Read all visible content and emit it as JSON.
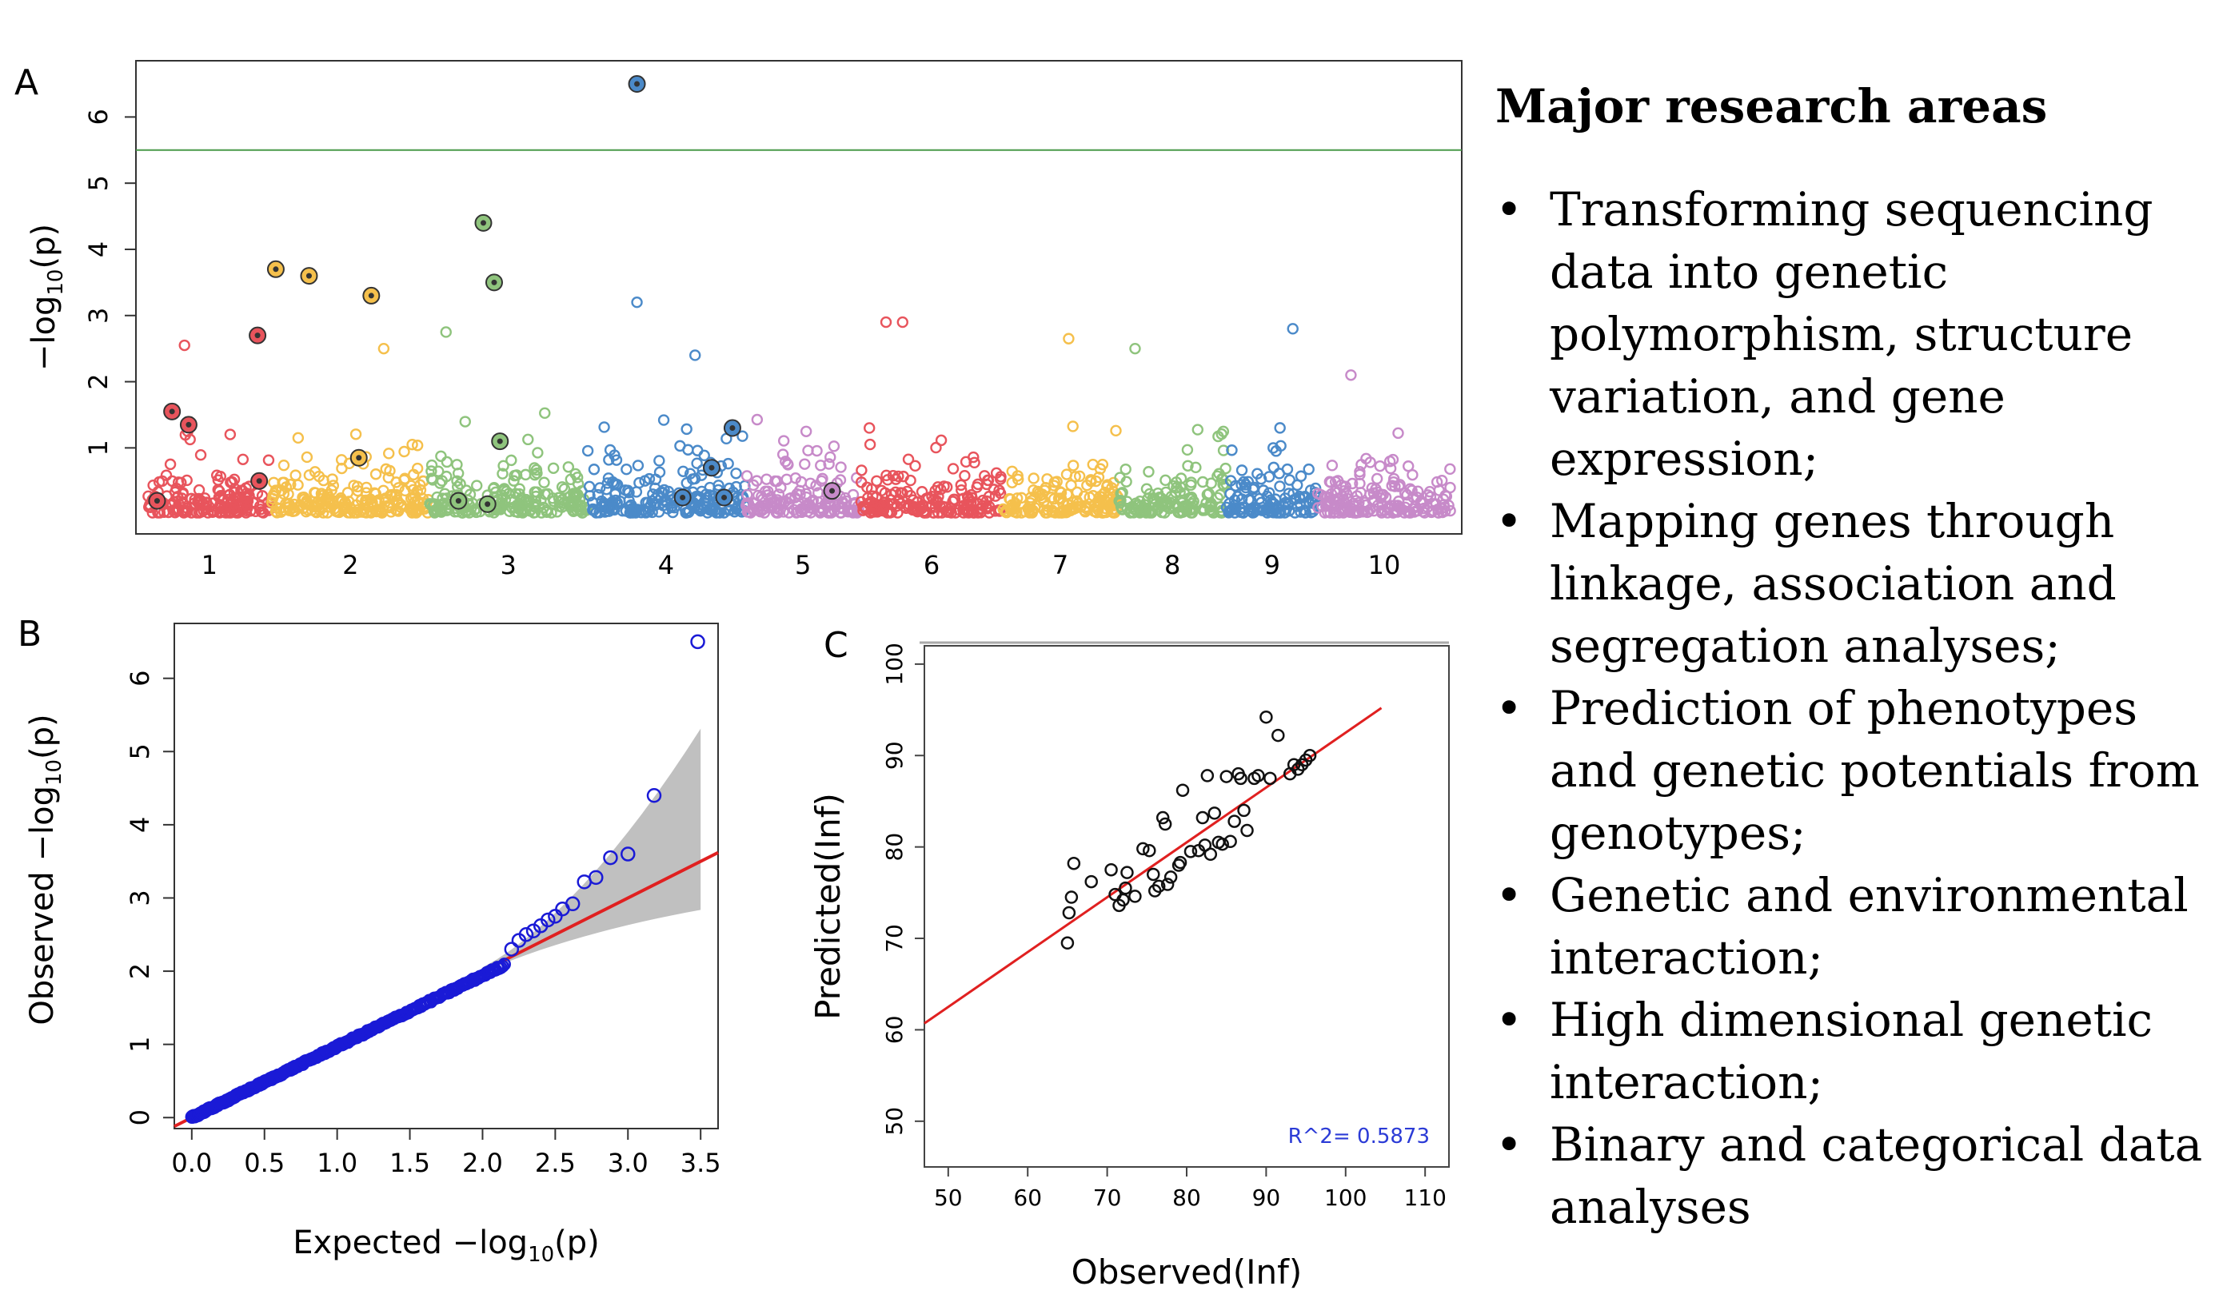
{
  "panel_labels": {
    "a": "A",
    "b": "B",
    "c": "C"
  },
  "research": {
    "heading": "Major research areas",
    "items": [
      "Transforming sequencing data into genetic polymorphism, structure variation, and gene expression;",
      "Mapping genes through linkage, association and segregation analyses;",
      "Prediction of phenotypes and genetic potentials from genotypes;",
      "Genetic and environmental interaction;",
      "High dimensional genetic interaction;",
      "Binary and categorical data analyses"
    ]
  },
  "chart_data": [
    {
      "panel": "A",
      "type": "scatter",
      "ylabel": "−log10(p)",
      "ylim": [
        -0.3,
        6.85
      ],
      "yticks": [
        1,
        2,
        3,
        4,
        5,
        6
      ],
      "threshold": 5.5,
      "chromosomes": [
        "1",
        "2",
        "3",
        "4",
        "5",
        "6",
        "7",
        "8",
        "9",
        "10"
      ],
      "chrom_ranges": [
        [
          0,
          1.5
        ],
        [
          1.5,
          3.4
        ],
        [
          3.4,
          5.3
        ],
        [
          5.3,
          7.2
        ],
        [
          7.2,
          8.6
        ],
        [
          8.6,
          10.3
        ],
        [
          10.3,
          11.7
        ],
        [
          11.7,
          13.0
        ],
        [
          13.0,
          14.1
        ],
        [
          14.1,
          15.7
        ]
      ],
      "colors": [
        "#e8545c",
        "#f5c04c",
        "#8fc47d",
        "#4b8ac9",
        "#c78ac9",
        "#e8545c",
        "#f5c04c",
        "#8fc47d",
        "#4b8ac9",
        "#c78ac9"
      ],
      "highlight": [
        {
          "pos": 0.12,
          "value": 0.2
        },
        {
          "pos": 0.3,
          "value": 1.55
        },
        {
          "pos": 0.5,
          "value": 1.35
        },
        {
          "pos": 1.35,
          "value": 0.5
        },
        {
          "pos": 1.33,
          "value": 2.7
        },
        {
          "pos": 1.55,
          "value": 3.7
        },
        {
          "pos": 1.95,
          "value": 3.6
        },
        {
          "pos": 2.55,
          "value": 0.85
        },
        {
          "pos": 2.7,
          "value": 3.3
        },
        {
          "pos": 3.75,
          "value": 0.2
        },
        {
          "pos": 4.05,
          "value": 4.4
        },
        {
          "pos": 4.1,
          "value": 0.15
        },
        {
          "pos": 4.18,
          "value": 3.5
        },
        {
          "pos": 4.25,
          "value": 1.1
        },
        {
          "pos": 5.9,
          "value": 6.5
        },
        {
          "pos": 6.45,
          "value": 0.25
        },
        {
          "pos": 6.8,
          "value": 0.7
        },
        {
          "pos": 6.95,
          "value": 0.25
        },
        {
          "pos": 7.05,
          "value": 1.3
        },
        {
          "pos": 8.25,
          "value": 0.35
        }
      ],
      "peaks": [
        {
          "pos": 0.45,
          "value": 2.55
        },
        {
          "pos": 5.9,
          "value": 3.2
        },
        {
          "pos": 8.9,
          "value": 2.9
        },
        {
          "pos": 9.1,
          "value": 2.9
        },
        {
          "pos": 11.1,
          "value": 2.65
        },
        {
          "pos": 11.9,
          "value": 2.5
        },
        {
          "pos": 13.8,
          "value": 2.8
        },
        {
          "pos": 14.5,
          "value": 2.1
        },
        {
          "pos": 6.6,
          "value": 2.4
        },
        {
          "pos": 2.85,
          "value": 2.5
        },
        {
          "pos": 3.6,
          "value": 2.75
        }
      ]
    },
    {
      "panel": "B",
      "type": "scatter",
      "xlabel": "Expected −log10(p)",
      "ylabel": "Observed −log10(p)",
      "xlim": [
        -0.12,
        3.62
      ],
      "ylim": [
        -0.15,
        6.75
      ],
      "xticks": [
        "0.0",
        "0.5",
        "1.0",
        "1.5",
        "2.0",
        "2.5",
        "3.0",
        "3.5"
      ],
      "yticks": [
        "0",
        "1",
        "2",
        "3",
        "4",
        "5",
        "6"
      ],
      "fit_line": {
        "slope": 1.0,
        "intercept": 0.0
      },
      "outliers": [
        {
          "x": 2.2,
          "y": 2.3
        },
        {
          "x": 2.25,
          "y": 2.42
        },
        {
          "x": 2.3,
          "y": 2.5
        },
        {
          "x": 2.35,
          "y": 2.55
        },
        {
          "x": 2.4,
          "y": 2.62
        },
        {
          "x": 2.45,
          "y": 2.7
        },
        {
          "x": 2.5,
          "y": 2.75
        },
        {
          "x": 2.55,
          "y": 2.85
        },
        {
          "x": 2.62,
          "y": 2.92
        },
        {
          "x": 2.7,
          "y": 3.22
        },
        {
          "x": 2.78,
          "y": 3.28
        },
        {
          "x": 2.88,
          "y": 3.55
        },
        {
          "x": 3.0,
          "y": 3.6
        },
        {
          "x": 3.18,
          "y": 4.4
        },
        {
          "x": 3.48,
          "y": 6.5
        }
      ]
    },
    {
      "panel": "C",
      "type": "scatter",
      "xlabel": "Observed(Inf)",
      "ylabel": "Predicted(Inf)",
      "xlim": [
        47,
        113
      ],
      "ylim": [
        45,
        102
      ],
      "xticks": [
        "50",
        "60",
        "70",
        "80",
        "90",
        "100",
        "110"
      ],
      "yticks": [
        "50",
        "60",
        "70",
        "80",
        "90",
        "100"
      ],
      "fit_line": {
        "slope": 0.6,
        "intercept": 32.5
      },
      "annotation": "R^2= 0.5873",
      "points": [
        [
          65,
          69.5
        ],
        [
          65.2,
          72.8
        ],
        [
          65.5,
          74.5
        ],
        [
          65.8,
          78.2
        ],
        [
          68,
          76.2
        ],
        [
          70.5,
          77.5
        ],
        [
          71,
          74.8
        ],
        [
          71.5,
          73.6
        ],
        [
          72,
          74.2
        ],
        [
          72.3,
          75.5
        ],
        [
          72.5,
          77.2
        ],
        [
          73.5,
          74.6
        ],
        [
          74.5,
          79.8
        ],
        [
          75.3,
          79.6
        ],
        [
          75.8,
          77
        ],
        [
          76,
          75.2
        ],
        [
          76.5,
          75.7
        ],
        [
          77,
          83.2
        ],
        [
          77.3,
          82.5
        ],
        [
          77.6,
          75.9
        ],
        [
          78,
          76.7
        ],
        [
          79,
          78
        ],
        [
          79.2,
          78.3
        ],
        [
          79.5,
          86.2
        ],
        [
          80.5,
          79.5
        ],
        [
          81.5,
          79.6
        ],
        [
          82,
          83.2
        ],
        [
          82.3,
          80.2
        ],
        [
          82.6,
          87.8
        ],
        [
          83,
          79.2
        ],
        [
          83.5,
          83.7
        ],
        [
          84,
          80.5
        ],
        [
          84.5,
          80.3
        ],
        [
          85,
          87.7
        ],
        [
          85.5,
          80.6
        ],
        [
          86,
          82.8
        ],
        [
          86.5,
          88
        ],
        [
          86.8,
          87.5
        ],
        [
          87.2,
          84
        ],
        [
          87.6,
          81.8
        ],
        [
          88.5,
          87.5
        ],
        [
          89,
          87.8
        ],
        [
          90,
          94.2
        ],
        [
          90.5,
          87.5
        ],
        [
          91.5,
          92.2
        ],
        [
          93,
          88
        ],
        [
          93.5,
          89
        ],
        [
          94,
          88.5
        ],
        [
          94.5,
          89
        ],
        [
          95,
          89.5
        ],
        [
          95.5,
          90
        ]
      ]
    }
  ]
}
